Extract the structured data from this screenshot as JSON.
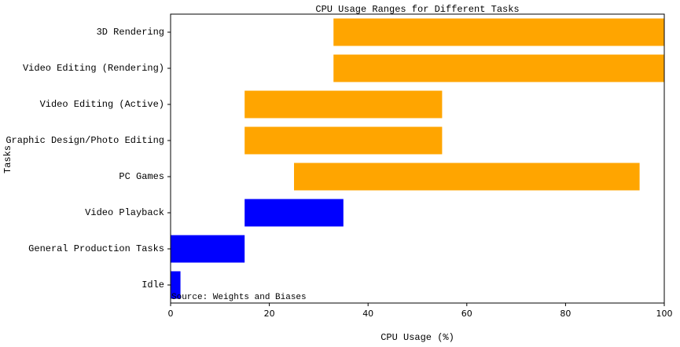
{
  "chart_data": {
    "type": "range-bar",
    "title": "CPU Usage Ranges for Different Tasks",
    "x_label": "CPU Usage (%)",
    "y_label": "Tasks",
    "annotation": "Source: Weights and Biases",
    "categories": [
      "Idle",
      "General Production Tasks",
      "Video Playback",
      "PC Games",
      "Graphic Design/Photo Editing",
      "Video Editing (Active)",
      "Video Editing (Rendering)",
      "3D Rendering"
    ],
    "start": [
      0,
      0,
      15,
      25,
      15,
      15,
      33,
      33
    ],
    "end": [
      2,
      15,
      35,
      95,
      55,
      55,
      100,
      100
    ],
    "colors": [
      "#0000ff",
      "#0000ff",
      "#0000ff",
      "#ffa500",
      "#ffa500",
      "#ffa500",
      "#ffa500",
      "#ffa500"
    ],
    "xlim": [
      0,
      100
    ],
    "xticks": [
      0,
      20,
      40,
      60,
      80,
      100
    ],
    "grid": false
  }
}
